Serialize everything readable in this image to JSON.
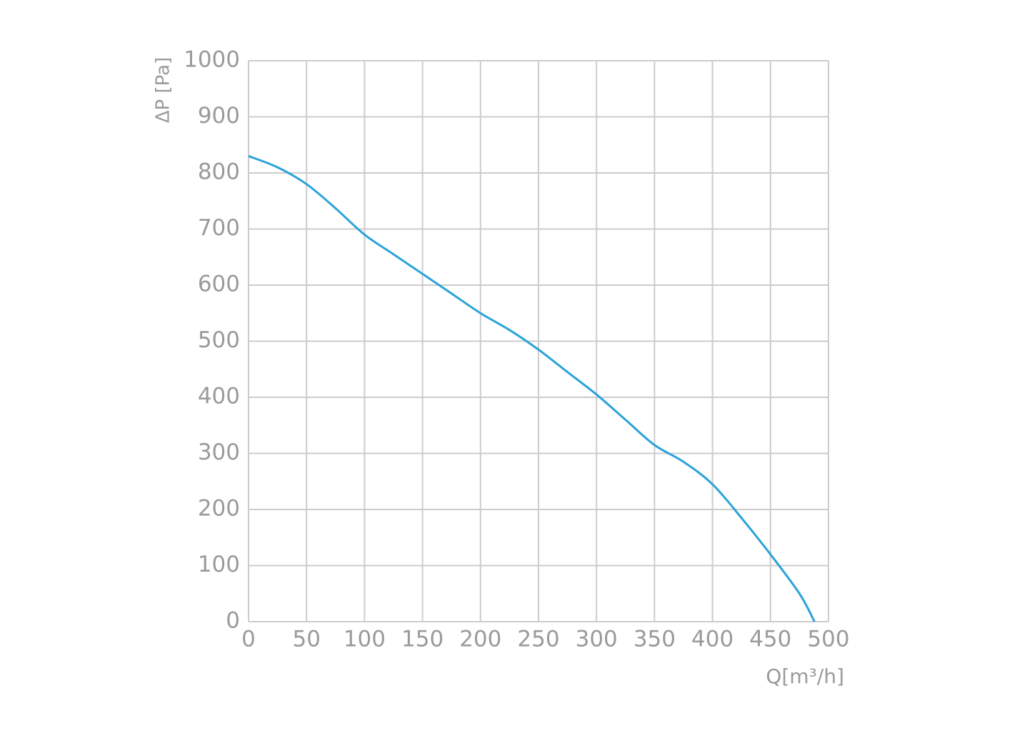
{
  "chart_data": {
    "type": "line",
    "y_label": "ΔP [Pa]",
    "x_label": "Q[m³/h]",
    "x": [
      0,
      25,
      50,
      75,
      100,
      125,
      150,
      175,
      200,
      225,
      250,
      275,
      300,
      325,
      350,
      375,
      400,
      425,
      450,
      475,
      488
    ],
    "series": [
      {
        "color": "#2ba3d9",
        "values": [
          830,
          810,
          780,
          737,
          690,
          655,
          620,
          585,
          550,
          520,
          485,
          445,
          405,
          360,
          315,
          285,
          245,
          185,
          120,
          50,
          0
        ]
      }
    ],
    "xlim": [
      0,
      500
    ],
    "xticks": [
      0,
      50,
      100,
      150,
      200,
      250,
      300,
      350,
      400,
      450,
      500
    ],
    "ylim": [
      0,
      1000
    ],
    "yticks": [
      0,
      100,
      200,
      300,
      400,
      500,
      600,
      700,
      800,
      900,
      1000
    ],
    "grid": true
  }
}
